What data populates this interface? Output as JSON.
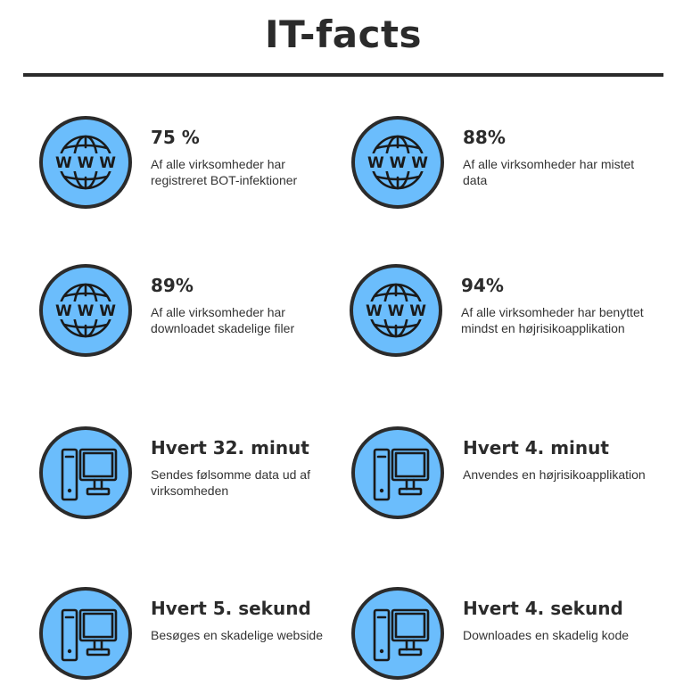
{
  "title": "IT-facts",
  "accent_color": "#6bbdfc",
  "dark_color": "#2b2b2b",
  "facts": [
    {
      "icon": "globe-www-icon",
      "stat": "75 %",
      "description": "Af alle virksomheder har registreret BOT-infektioner"
    },
    {
      "icon": "globe-www-icon",
      "stat": "88%",
      "description": "Af alle virksomheder har mistet data"
    },
    {
      "icon": "globe-www-icon",
      "stat": "89%",
      "description": "Af alle virksomheder har downloadet skadelige filer"
    },
    {
      "icon": "globe-www-icon",
      "stat": "94%",
      "description": "Af alle virksomheder har benyttet mindst en højrisikoapplikation"
    },
    {
      "icon": "computer-icon",
      "stat": "Hvert 32. minut",
      "description": "Sendes følsomme data ud af virksomheden"
    },
    {
      "icon": "computer-icon",
      "stat": "Hvert 4. minut",
      "description": "Anvendes en højrisikoapplikation"
    },
    {
      "icon": "computer-icon",
      "stat": "Hvert 5. sekund",
      "description": "Besøges en skadelige webside"
    },
    {
      "icon": "computer-icon",
      "stat": "Hvert 4. sekund",
      "description": "Downloades en skadelig kode"
    }
  ]
}
